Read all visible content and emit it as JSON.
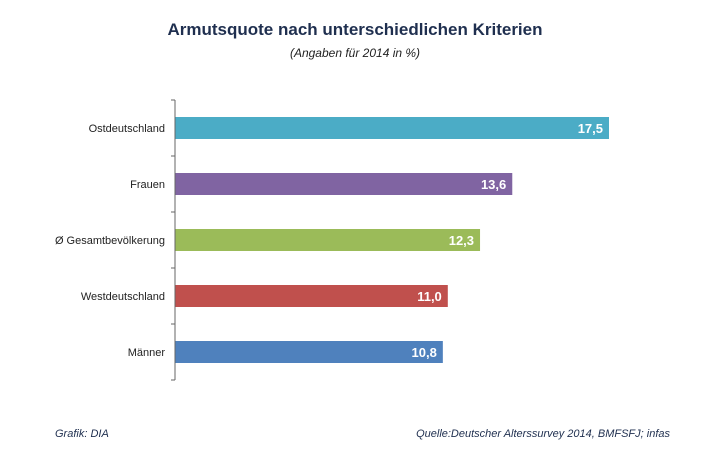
{
  "chart_data": {
    "type": "bar",
    "orientation": "horizontal",
    "title": "Armutsquote nach unterschiedlichen Kriterien",
    "subtitle": "(Angaben für 2014 in %)",
    "categories": [
      "Ostdeutschland",
      "Frauen",
      "Ø Gesamtbevölkerung",
      "Westdeutschland",
      "Männer"
    ],
    "values": [
      17.5,
      13.6,
      12.3,
      11.0,
      10.8
    ],
    "value_labels": [
      "17,5",
      "13,6",
      "12,3",
      "11,0",
      "10,8"
    ],
    "colors": [
      "#4bacc6",
      "#8064a2",
      "#9bbb59",
      "#c0504d",
      "#4f81bd"
    ],
    "xlim": [
      0,
      17.5
    ],
    "grid": false,
    "legend": "none"
  },
  "footer": {
    "left": "Grafik: DIA",
    "right": "Quelle:Deutscher Alterssurvey 2014, BMFSFJ; infas"
  }
}
